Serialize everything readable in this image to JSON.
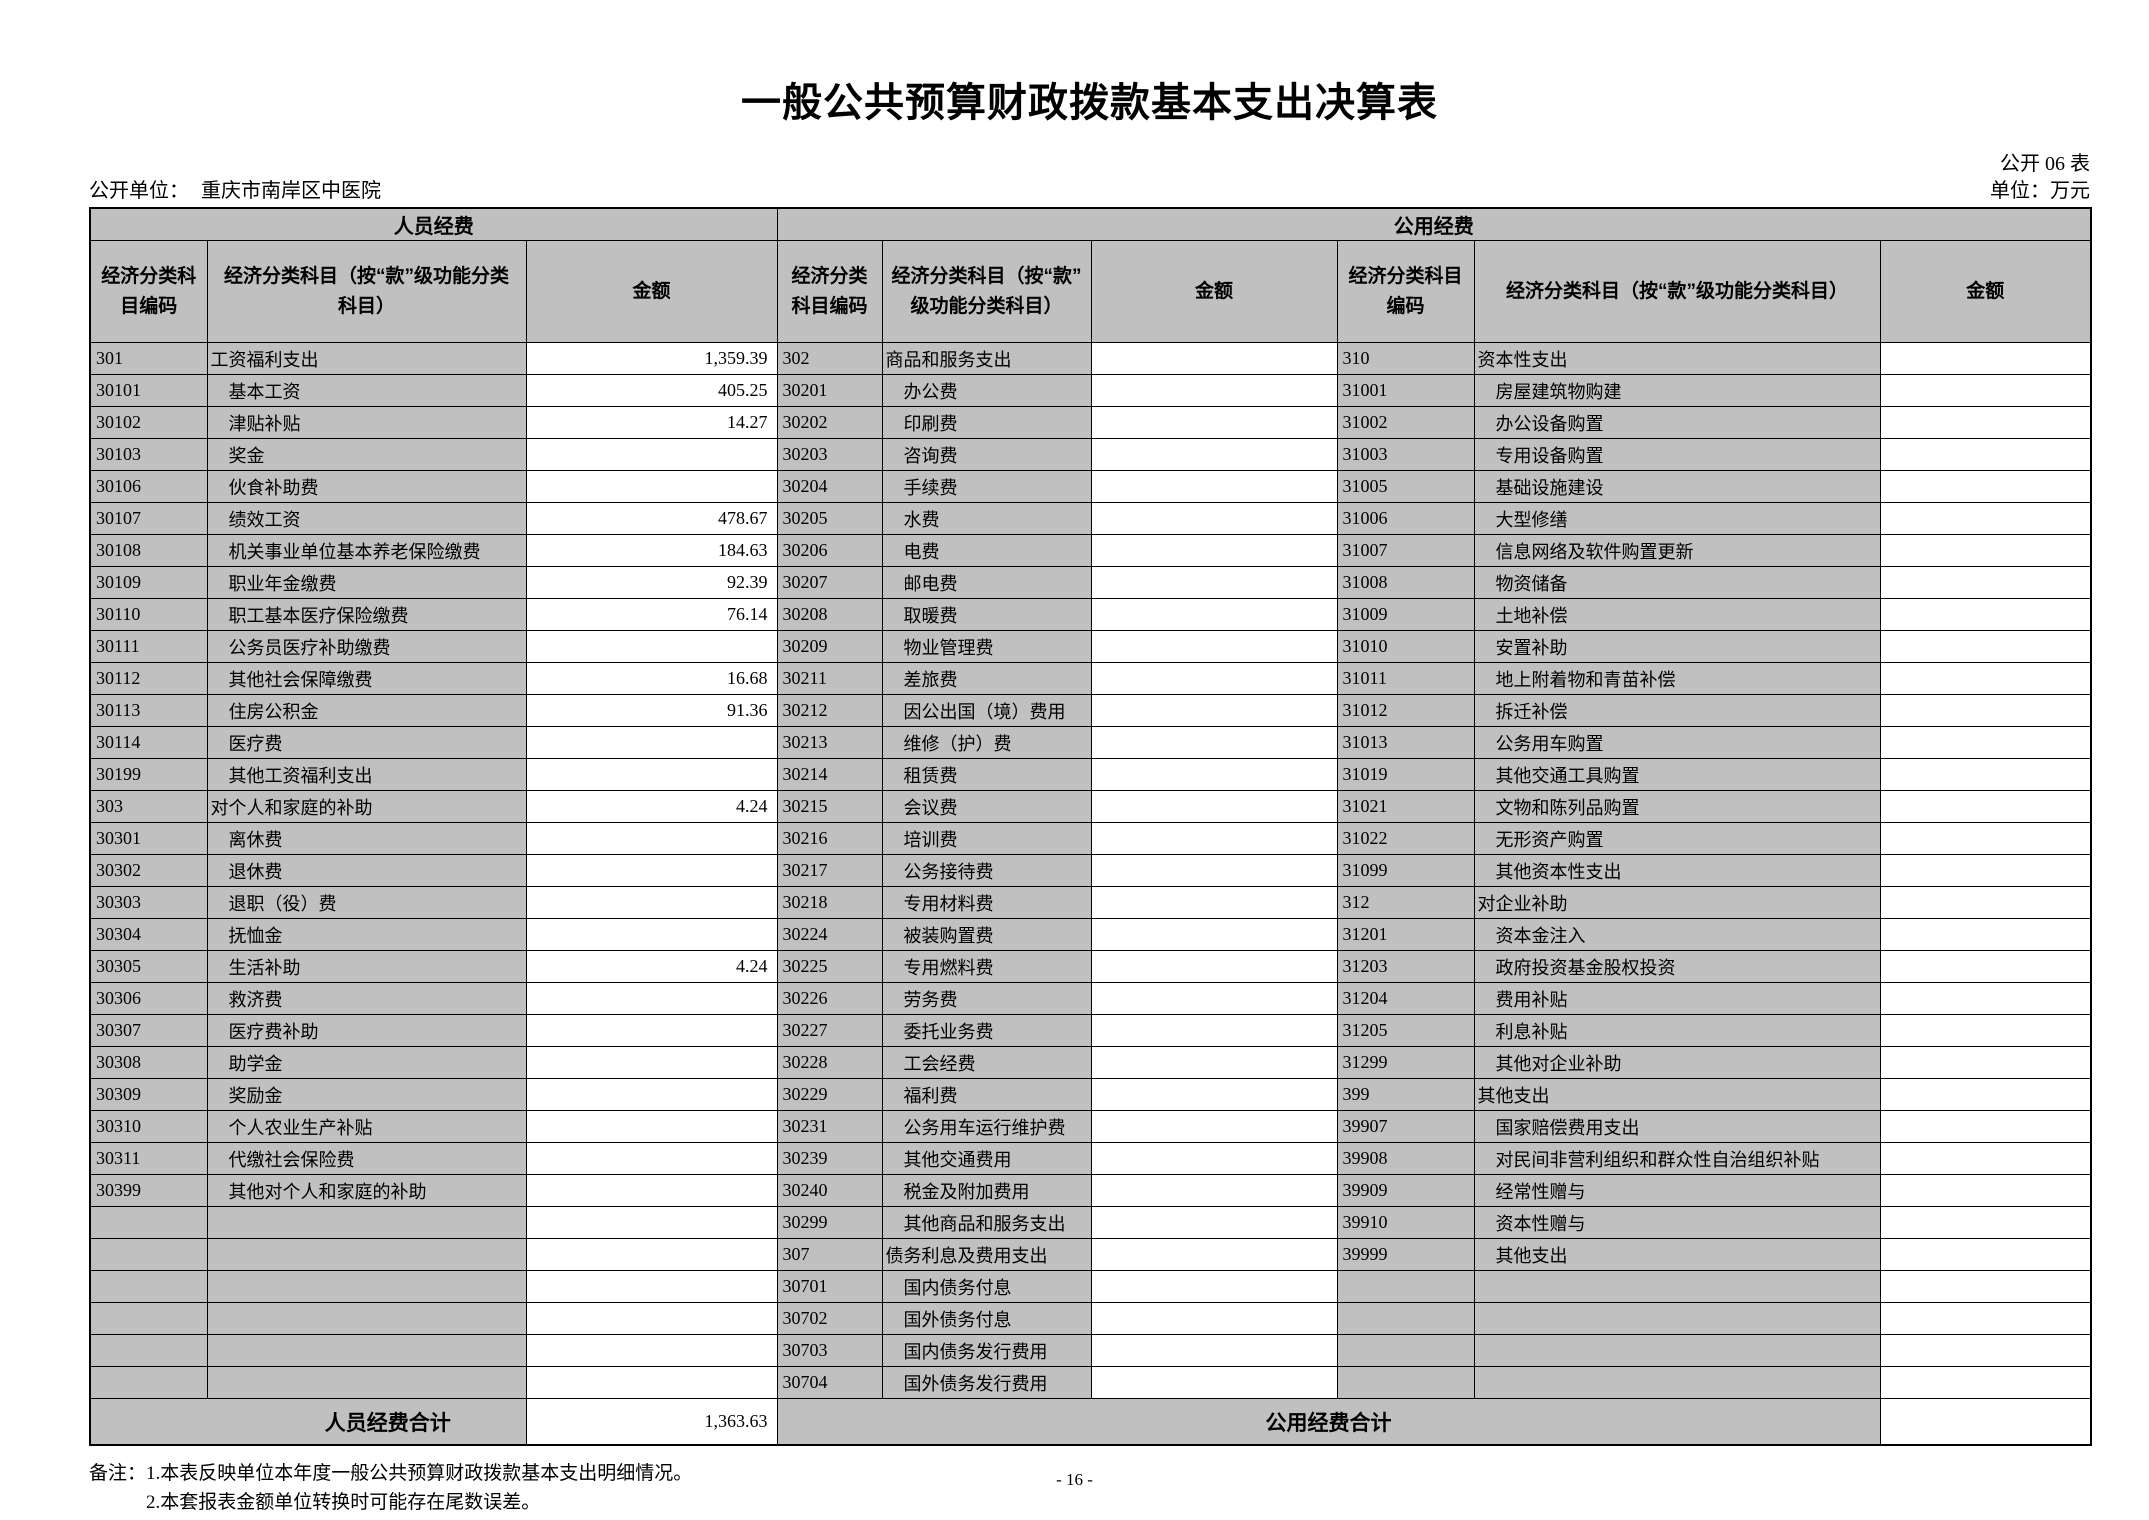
{
  "title": "一般公共预算财政拨款基本支出决算表",
  "header": {
    "table_no": "公开 06 表",
    "org_label": "公开单位：",
    "org_name": "重庆市南岸区中医院",
    "unit": "单位：万元"
  },
  "table": {
    "group_headers": [
      "人员经费",
      "公用经费"
    ],
    "col_headers": [
      "经济分类科\n目编码",
      "经济分类科目（按“款”级功能分类\n科目）",
      "金额",
      "经济分类\n科目编码",
      "经济分类科目（按“款”\n级功能分类科目）",
      "金额",
      "经济分类科目\n编码",
      "经济分类科目（按“款”级功能分类科目）",
      "金额"
    ],
    "rows": [
      [
        "301",
        "工资福利支出",
        "1,359.39",
        "302",
        "商品和服务支出",
        "",
        "310",
        "资本性支出",
        ""
      ],
      [
        "30101",
        "基本工资",
        "405.25",
        "30201",
        "办公费",
        "",
        "31001",
        "房屋建筑物购建",
        ""
      ],
      [
        "30102",
        "津贴补贴",
        "14.27",
        "30202",
        "印刷费",
        "",
        "31002",
        "办公设备购置",
        ""
      ],
      [
        "30103",
        "奖金",
        "",
        "30203",
        "咨询费",
        "",
        "31003",
        "专用设备购置",
        ""
      ],
      [
        "30106",
        "伙食补助费",
        "",
        "30204",
        "手续费",
        "",
        "31005",
        "基础设施建设",
        ""
      ],
      [
        "30107",
        "绩效工资",
        "478.67",
        "30205",
        "水费",
        "",
        "31006",
        "大型修缮",
        ""
      ],
      [
        "30108",
        "机关事业单位基本养老保险缴费",
        "184.63",
        "30206",
        "电费",
        "",
        "31007",
        "信息网络及软件购置更新",
        ""
      ],
      [
        "30109",
        "职业年金缴费",
        "92.39",
        "30207",
        "邮电费",
        "",
        "31008",
        "物资储备",
        ""
      ],
      [
        "30110",
        "职工基本医疗保险缴费",
        "76.14",
        "30208",
        "取暖费",
        "",
        "31009",
        "土地补偿",
        ""
      ],
      [
        "30111",
        "公务员医疗补助缴费",
        "",
        "30209",
        "物业管理费",
        "",
        "31010",
        "安置补助",
        ""
      ],
      [
        "30112",
        "其他社会保障缴费",
        "16.68",
        "30211",
        "差旅费",
        "",
        "31011",
        "地上附着物和青苗补偿",
        ""
      ],
      [
        "30113",
        "住房公积金",
        "91.36",
        "30212",
        "因公出国（境）费用",
        "",
        "31012",
        "拆迁补偿",
        ""
      ],
      [
        "30114",
        "医疗费",
        "",
        "30213",
        "维修（护）费",
        "",
        "31013",
        "公务用车购置",
        ""
      ],
      [
        "30199",
        "其他工资福利支出",
        "",
        "30214",
        "租赁费",
        "",
        "31019",
        "其他交通工具购置",
        ""
      ],
      [
        "303",
        "对个人和家庭的补助",
        "4.24",
        "30215",
        "会议费",
        "",
        "31021",
        "文物和陈列品购置",
        ""
      ],
      [
        "30301",
        "离休费",
        "",
        "30216",
        "培训费",
        "",
        "31022",
        "无形资产购置",
        ""
      ],
      [
        "30302",
        "退休费",
        "",
        "30217",
        "公务接待费",
        "",
        "31099",
        "其他资本性支出",
        ""
      ],
      [
        "30303",
        "退职（役）费",
        "",
        "30218",
        "专用材料费",
        "",
        "312",
        "对企业补助",
        ""
      ],
      [
        "30304",
        "抚恤金",
        "",
        "30224",
        "被装购置费",
        "",
        "31201",
        "资本金注入",
        ""
      ],
      [
        "30305",
        "生活补助",
        "4.24",
        "30225",
        "专用燃料费",
        "",
        "31203",
        "政府投资基金股权投资",
        ""
      ],
      [
        "30306",
        "救济费",
        "",
        "30226",
        "劳务费",
        "",
        "31204",
        "费用补贴",
        ""
      ],
      [
        "30307",
        "医疗费补助",
        "",
        "30227",
        "委托业务费",
        "",
        "31205",
        "利息补贴",
        ""
      ],
      [
        "30308",
        "助学金",
        "",
        "30228",
        "工会经费",
        "",
        "31299",
        "其他对企业补助",
        ""
      ],
      [
        "30309",
        "奖励金",
        "",
        "30229",
        "福利费",
        "",
        "399",
        "其他支出",
        ""
      ],
      [
        "30310",
        "个人农业生产补贴",
        "",
        "30231",
        "公务用车运行维护费",
        "",
        "39907",
        "国家赔偿费用支出",
        ""
      ],
      [
        "30311",
        "代缴社会保险费",
        "",
        "30239",
        "其他交通费用",
        "",
        "39908",
        "对民间非营利组织和群众性自治组织补贴",
        ""
      ],
      [
        "30399",
        "其他对个人和家庭的补助",
        "",
        "30240",
        "税金及附加费用",
        "",
        "39909",
        "经常性赠与",
        ""
      ],
      [
        "",
        "",
        "",
        "30299",
        "其他商品和服务支出",
        "",
        "39910",
        "资本性赠与",
        ""
      ],
      [
        "",
        "",
        "",
        "307",
        "债务利息及费用支出",
        "",
        "39999",
        "其他支出",
        ""
      ],
      [
        "",
        "",
        "",
        "30701",
        "国内债务付息",
        "",
        "",
        "",
        ""
      ],
      [
        "",
        "",
        "",
        "30702",
        "国外债务付息",
        "",
        "",
        "",
        ""
      ],
      [
        "",
        "",
        "",
        "30703",
        "国内债务发行费用",
        "",
        "",
        "",
        ""
      ],
      [
        "",
        "",
        "",
        "30704",
        "国外债务发行费用",
        "",
        "",
        "",
        ""
      ]
    ],
    "summary": {
      "personnel_label": "人员经费合计",
      "personnel_total": "1,363.63",
      "public_label": "公用经费合计",
      "public_total": ""
    }
  },
  "notes": [
    "备注：1.本表反映单位本年度一般公共预算财政拨款基本支出明细情况。",
    "2.本套报表金额单位转换时可能存在尾数误差。"
  ],
  "page_number": "- 16 -"
}
